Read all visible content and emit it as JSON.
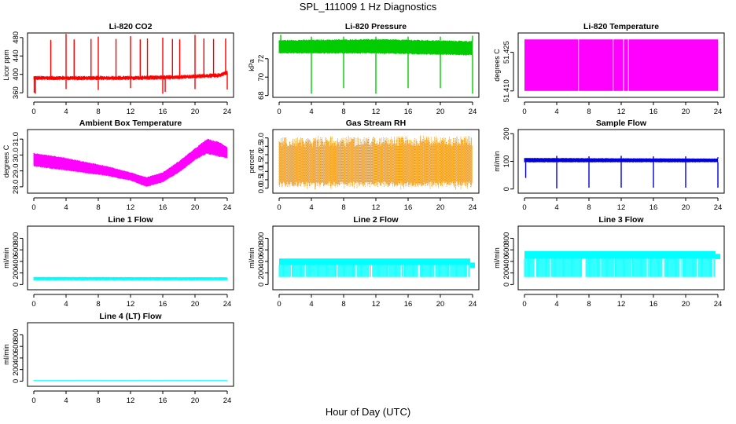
{
  "title": "SPL_111009  1 Hz Diagnostics",
  "xlabel": "Hour of Day (UTC)",
  "chart_data": [
    {
      "type": "line",
      "title": "Li-820 CO2",
      "ylabel": "Licor ppm",
      "xlim": [
        0,
        24
      ],
      "ylim": [
        350,
        490
      ],
      "yticks": [
        360,
        400,
        440,
        480
      ],
      "xticks": [
        0,
        4,
        8,
        12,
        16,
        20,
        24
      ],
      "color": "#ff0000",
      "style": "spiky",
      "baseline": [
        [
          0,
          392
        ],
        [
          6,
          392
        ],
        [
          12,
          392
        ],
        [
          18,
          394
        ],
        [
          23,
          398
        ],
        [
          24,
          404
        ]
      ],
      "band": 5,
      "spikes_up": [
        [
          2.1,
          475
        ],
        [
          4.0,
          488
        ],
        [
          5.0,
          476
        ],
        [
          7.1,
          477
        ],
        [
          8.0,
          482
        ],
        [
          10.2,
          477
        ],
        [
          12.0,
          483
        ],
        [
          13.2,
          476
        ],
        [
          14.1,
          478
        ],
        [
          16.0,
          480
        ],
        [
          17.2,
          477
        ],
        [
          18.1,
          476
        ],
        [
          20.0,
          486
        ],
        [
          21.1,
          478
        ],
        [
          22.3,
          477
        ],
        [
          23.8,
          478
        ]
      ],
      "spikes_down": [
        [
          0.05,
          360
        ],
        [
          0.2,
          358
        ],
        [
          4.0,
          368
        ],
        [
          8.0,
          366
        ],
        [
          12.0,
          370
        ],
        [
          16.0,
          358
        ],
        [
          16.3,
          362
        ],
        [
          20.0,
          368
        ],
        [
          24.0,
          367
        ]
      ]
    },
    {
      "type": "line",
      "title": "Li-820 Pressure",
      "ylabel": "kPa",
      "xlim": [
        0,
        24
      ],
      "ylim": [
        67.8,
        74.8
      ],
      "yticks": [
        68,
        70,
        72
      ],
      "xticks": [
        0,
        4,
        8,
        12,
        16,
        20,
        24
      ],
      "color": "#00cc00",
      "style": "band",
      "upper": [
        [
          0,
          74.0
        ],
        [
          12,
          74.1
        ],
        [
          24,
          73.9
        ]
      ],
      "lower": [
        [
          0,
          72.6
        ],
        [
          12,
          72.6
        ],
        [
          24,
          72.4
        ]
      ],
      "spikes_down": [
        [
          0.2,
          73.0
        ],
        [
          4.0,
          68.2
        ],
        [
          8.0,
          68.8
        ],
        [
          12.0,
          68.2
        ],
        [
          16.0,
          68.8
        ],
        [
          20.0,
          68.8
        ],
        [
          24.0,
          68.2
        ]
      ],
      "spikes_up": [
        [
          0.2,
          74.6
        ],
        [
          4.0,
          74.4
        ],
        [
          8.0,
          74.4
        ],
        [
          12.0,
          74.4
        ],
        [
          16.0,
          74.4
        ],
        [
          20.0,
          74.4
        ],
        [
          24.0,
          74.5
        ]
      ]
    },
    {
      "type": "area",
      "title": "Li-820 Temperature",
      "ylabel": "degrees C",
      "xlim": [
        0,
        24
      ],
      "ylim": [
        51.4075,
        51.4325
      ],
      "yticks": [
        51.41,
        51.425
      ],
      "xticks": [
        0,
        4,
        8,
        12,
        16,
        20,
        24
      ],
      "color": "#ff00ff",
      "style": "block",
      "lower": 51.41,
      "upper": 51.43,
      "gaps": [
        6.7,
        11.0,
        12.3,
        12.9
      ]
    },
    {
      "type": "line",
      "title": "Ambient Box Temperature",
      "ylabel": "degrees C",
      "xlim": [
        0,
        24
      ],
      "ylim": [
        27.6,
        31.6
      ],
      "yticks": [
        28.0,
        29.0,
        30.0,
        31.0
      ],
      "xticks": [
        0,
        4,
        8,
        12,
        16,
        20,
        24
      ],
      "color": "#ff00ff",
      "style": "band",
      "upper": [
        [
          0,
          30.1
        ],
        [
          3,
          29.9
        ],
        [
          6,
          29.6
        ],
        [
          9,
          29.3
        ],
        [
          12,
          28.9
        ],
        [
          14,
          28.6
        ],
        [
          16,
          28.9
        ],
        [
          18,
          29.6
        ],
        [
          20,
          30.4
        ],
        [
          21.5,
          31.0
        ],
        [
          23,
          30.8
        ],
        [
          24,
          30.5
        ]
      ],
      "lower": [
        [
          0,
          29.3
        ],
        [
          3,
          29.1
        ],
        [
          6,
          28.9
        ],
        [
          9,
          28.7
        ],
        [
          12,
          28.4
        ],
        [
          14,
          28.0
        ],
        [
          16,
          28.3
        ],
        [
          18,
          28.9
        ],
        [
          20,
          29.7
        ],
        [
          21.5,
          30.1
        ],
        [
          23,
          29.9
        ],
        [
          24,
          29.8
        ]
      ],
      "spikes_down": [],
      "spikes_up": []
    },
    {
      "type": "line",
      "title": "Gas Stream RH",
      "ylabel": "percent",
      "xlim": [
        0,
        24
      ],
      "ylim": [
        -0.3,
        3.5
      ],
      "yticks": [
        0.0,
        0.5,
        1.0,
        1.5,
        2.0,
        2.5,
        3.0
      ],
      "xticks": [
        0,
        4,
        8,
        12,
        16,
        20,
        24
      ],
      "color": "#ffa500",
      "style": "noise",
      "upper": [
        [
          0,
          2.6
        ],
        [
          24,
          2.7
        ]
      ],
      "lower": [
        [
          0,
          0.4
        ],
        [
          24,
          0.4
        ]
      ],
      "max": 3.2,
      "min": -0.1
    },
    {
      "type": "line",
      "title": "Sample Flow",
      "ylabel": "ml/min",
      "xlim": [
        0,
        24
      ],
      "ylim": [
        -15,
        215
      ],
      "yticks": [
        0,
        100,
        200
      ],
      "xticks": [
        0,
        4,
        8,
        12,
        16,
        20,
        24
      ],
      "color": "#0000dd",
      "style": "band",
      "upper": [
        [
          0,
          112
        ],
        [
          24,
          110
        ]
      ],
      "lower": [
        [
          0,
          97
        ],
        [
          24,
          97
        ]
      ],
      "spikes_down": [
        [
          0.15,
          40
        ],
        [
          4.0,
          2
        ],
        [
          8.0,
          5
        ],
        [
          12.0,
          5
        ],
        [
          16.0,
          5
        ],
        [
          20.0,
          5
        ],
        [
          24.0,
          5
        ]
      ],
      "spikes_up": [
        [
          4.0,
          120
        ],
        [
          8.0,
          118
        ],
        [
          12.0,
          120
        ],
        [
          16.0,
          118
        ],
        [
          20.0,
          118
        ],
        [
          24.0,
          115
        ]
      ]
    },
    {
      "type": "line",
      "title": "Line 1 Flow",
      "ylabel": "ml/min",
      "xlim": [
        0,
        24
      ],
      "ylim": [
        -90,
        1010
      ],
      "yticks": [
        0,
        200,
        400,
        600,
        800
      ],
      "xticks": [
        0,
        4,
        8,
        12,
        16,
        20,
        24
      ],
      "color": "#00ffff",
      "style": "band",
      "upper": [
        [
          0,
          130
        ],
        [
          24,
          125
        ]
      ],
      "lower": [
        [
          0,
          75
        ],
        [
          24,
          75
        ]
      ],
      "spikes_down": [],
      "spikes_up": []
    },
    {
      "type": "line",
      "title": "Line 2 Flow",
      "ylabel": "ml/min",
      "xlim": [
        0,
        24
      ],
      "ylim": [
        -90,
        1010
      ],
      "yticks": [
        0,
        200,
        400,
        600,
        800
      ],
      "xticks": [
        0,
        4,
        8,
        12,
        16,
        20,
        24
      ],
      "color": "#00ffff",
      "style": "comb",
      "upper": 450,
      "lower": 130,
      "mid": 340,
      "period": 2,
      "endvalue": 350
    },
    {
      "type": "line",
      "title": "Line 3 Flow",
      "ylabel": "ml/min",
      "xlim": [
        0,
        24
      ],
      "ylim": [
        -90,
        1010
      ],
      "yticks": [
        0,
        200,
        400,
        600,
        800
      ],
      "xticks": [
        0,
        4,
        8,
        12,
        16,
        20,
        24
      ],
      "color": "#00ffff",
      "style": "comb",
      "upper": 580,
      "lower": 130,
      "mid": 450,
      "period": 2,
      "endvalue": 500
    },
    {
      "type": "line",
      "title": "Line 4 (LT) Flow",
      "ylabel": "ml/min",
      "xlim": [
        0,
        24
      ],
      "ylim": [
        -90,
        1010
      ],
      "yticks": [
        0,
        200,
        400,
        600,
        800
      ],
      "xticks": [
        0,
        4,
        8,
        12,
        16,
        20,
        24
      ],
      "color": "#00ffff",
      "style": "band",
      "upper": [
        [
          0,
          15
        ],
        [
          24,
          15
        ]
      ],
      "lower": [
        [
          0,
          0
        ],
        [
          24,
          0
        ]
      ],
      "spikes_down": [],
      "spikes_up": []
    }
  ]
}
